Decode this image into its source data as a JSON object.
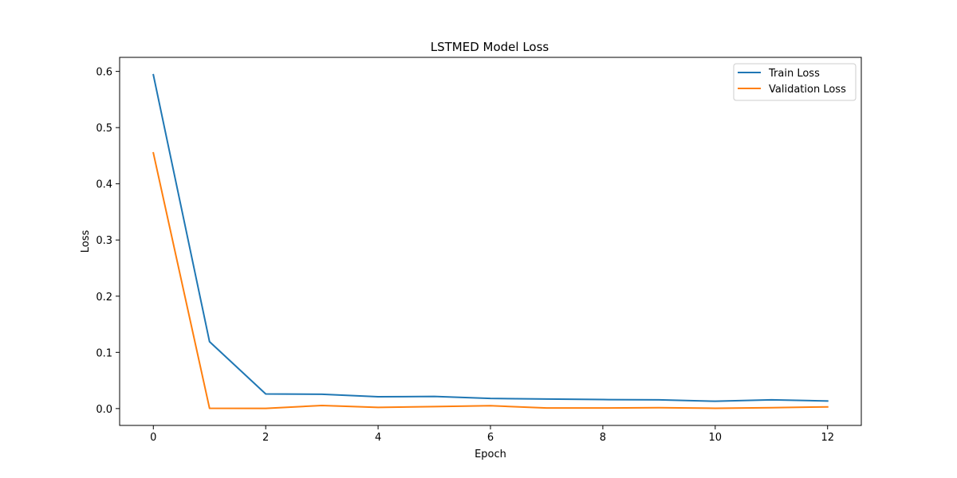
{
  "chart_data": {
    "type": "line",
    "title": "LSTMED Model Loss",
    "xlabel": "Epoch",
    "ylabel": "Loss",
    "xlim": [
      -0.6,
      12.6
    ],
    "ylim": [
      -0.03,
      0.625
    ],
    "xticks": [
      0,
      2,
      4,
      6,
      8,
      10,
      12
    ],
    "xtick_labels": [
      "0",
      "2",
      "4",
      "6",
      "8",
      "10",
      "12"
    ],
    "yticks": [
      0.0,
      0.1,
      0.2,
      0.3,
      0.4,
      0.5,
      0.6
    ],
    "ytick_labels": [
      "0.0",
      "0.1",
      "0.2",
      "0.3",
      "0.4",
      "0.5",
      "0.6"
    ],
    "grid": false,
    "legend_position": "top-right",
    "x": [
      0,
      1,
      2,
      3,
      4,
      5,
      6,
      7,
      8,
      9,
      10,
      11,
      12
    ],
    "series": [
      {
        "name": "Train Loss",
        "color": "#1f77b4",
        "values": [
          0.594,
          0.119,
          0.026,
          0.0255,
          0.021,
          0.0215,
          0.018,
          0.017,
          0.016,
          0.0155,
          0.013,
          0.0155,
          0.0135
        ]
      },
      {
        "name": "Validation Loss",
        "color": "#ff7f0e",
        "values": [
          0.455,
          0.0005,
          0.0003,
          0.0055,
          0.002,
          0.0035,
          0.005,
          0.001,
          0.001,
          0.0015,
          0.0005,
          0.0015,
          0.003
        ]
      }
    ]
  }
}
